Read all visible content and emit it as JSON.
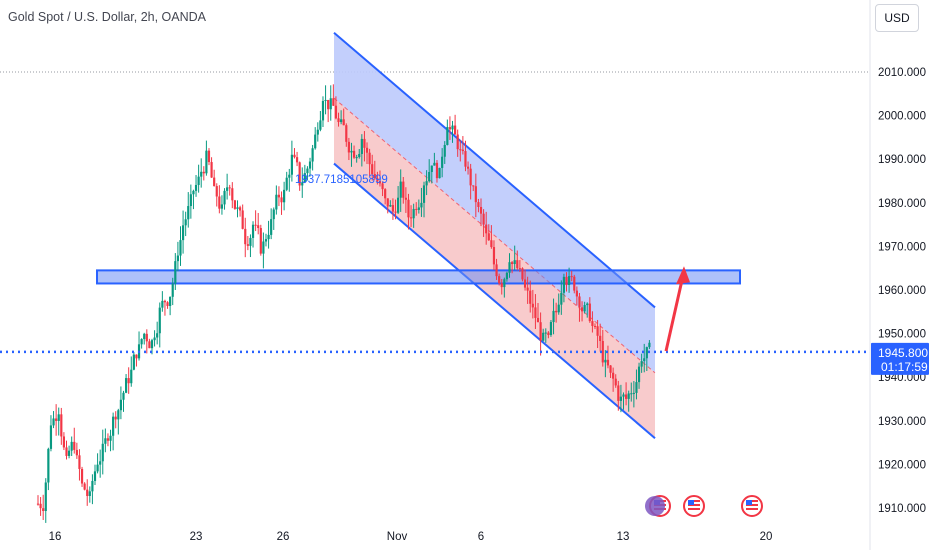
{
  "header": {
    "symbol_title": "Gold Spot / U.S. Dollar, 2h, OANDA",
    "currency_button": "USD"
  },
  "price_tag": {
    "price": "1945.800",
    "countdown": "01:17:59"
  },
  "channel_label": "1937.7185105899",
  "colors": {
    "bull": "#089981",
    "bear": "#f23645",
    "channel_line": "#2962ff",
    "channel_upper_fill": "#bccafc",
    "channel_lower_fill": "#f7c5c7",
    "zone_fill": "#6a8ef5",
    "arrow": "#f23645",
    "price_line": "#2962ff"
  },
  "chart_data": {
    "type": "candlestick",
    "title": "Gold Spot / U.S. Dollar, 2h, OANDA",
    "y_axis": {
      "ticks": [
        2010,
        2000,
        1990,
        1980,
        1970,
        1960,
        1950,
        1940,
        1930,
        1920,
        1910
      ],
      "tick_labels": [
        "2010.000",
        "2000.000",
        "1990.000",
        "1980.000",
        "1970.000",
        "1960.000",
        "1950.000",
        "1940.000",
        "1930.000",
        "1920.000",
        "1910.000"
      ],
      "ylim": [
        1907,
        2018
      ],
      "position": "right"
    },
    "x_axis": {
      "tick_labels": [
        "16",
        "23",
        "26",
        "Nov",
        "6",
        "13",
        "20"
      ]
    },
    "last_price": 1945.8,
    "dotted_reference_level": 2010,
    "support_resistance_zone": {
      "low": 1961.5,
      "high": 1964.5
    },
    "descending_channel": {
      "upper_start": 2019,
      "upper_end": 1956,
      "lower_start": 1989,
      "lower_end": 1926,
      "midline_label": "1937.7185105899"
    },
    "projection_arrow": {
      "from": 1946,
      "to": 1965
    },
    "candles_close_path": [
      1911,
      1930,
      1933,
      1920,
      1925,
      1915,
      1912,
      1921,
      1925,
      1930,
      1935,
      1940,
      1946,
      1950,
      1948,
      1955,
      1958,
      1965,
      1975,
      1980,
      1985,
      1990,
      1982,
      1978,
      1985,
      1978,
      1972,
      1975,
      1970,
      1974,
      1980,
      1982,
      1990,
      1985,
      1988,
      1995,
      2005,
      2002,
      1998,
      1995,
      1992,
      1995,
      1989,
      1985,
      1980,
      1978,
      1983,
      1977,
      1980,
      1985,
      1990,
      1986,
      1999,
      1995,
      1990,
      1985,
      1978,
      1972,
      1966,
      1962,
      1968,
      1965,
      1960,
      1955,
      1950,
      1948,
      1955,
      1965,
      1962,
      1958,
      1955,
      1950,
      1945,
      1940,
      1936,
      1935,
      1938,
      1945,
      1946
    ],
    "legend_placement": "none",
    "event_markers": [
      "us-flag",
      "us-flag",
      "us-flag"
    ]
  }
}
